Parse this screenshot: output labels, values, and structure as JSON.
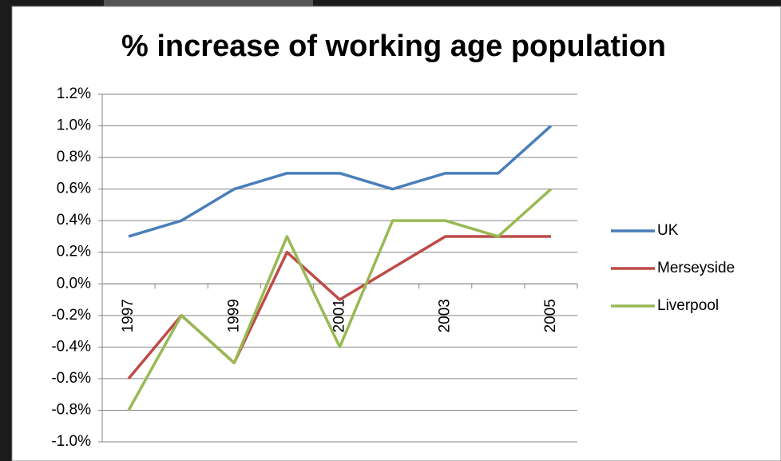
{
  "chart_data": {
    "type": "line",
    "title": "% increase of working age population",
    "categories": [
      "1997",
      null,
      "1999",
      null,
      "2001",
      null,
      "2003",
      null,
      "2005"
    ],
    "series": [
      {
        "name": "UK",
        "color": "#4a7ebb",
        "values": [
          0.3,
          0.4,
          0.6,
          0.7,
          0.7,
          0.6,
          0.7,
          0.7,
          1.0
        ]
      },
      {
        "name": "Merseyside",
        "color": "#be4b48",
        "values": [
          -0.6,
          -0.2,
          -0.5,
          0.2,
          -0.1,
          0.1,
          0.3,
          0.3,
          0.3
        ]
      },
      {
        "name": "Liverpool",
        "color": "#98b954",
        "values": [
          -0.8,
          -0.2,
          -0.5,
          0.3,
          -0.4,
          0.4,
          0.4,
          0.3,
          0.6
        ]
      }
    ],
    "ylim": [
      -1.0,
      1.2
    ],
    "yticks": [
      {
        "value": 1.2,
        "label": "1.2%"
      },
      {
        "value": 1.0,
        "label": "1.0%"
      },
      {
        "value": 0.8,
        "label": "0.8%"
      },
      {
        "value": 0.6,
        "label": "0.6%"
      },
      {
        "value": 0.4,
        "label": "0.4%"
      },
      {
        "value": 0.2,
        "label": "0.2%"
      },
      {
        "value": 0.0,
        "label": "0.0%"
      },
      {
        "value": -0.2,
        "label": "-0.2%"
      },
      {
        "value": -0.4,
        "label": "-0.4%"
      },
      {
        "value": -0.6,
        "label": "-0.6%"
      },
      {
        "value": -0.8,
        "label": "-0.8%"
      },
      {
        "value": -1.0,
        "label": "-1.0%"
      }
    ],
    "grid": true,
    "legend": "right"
  }
}
